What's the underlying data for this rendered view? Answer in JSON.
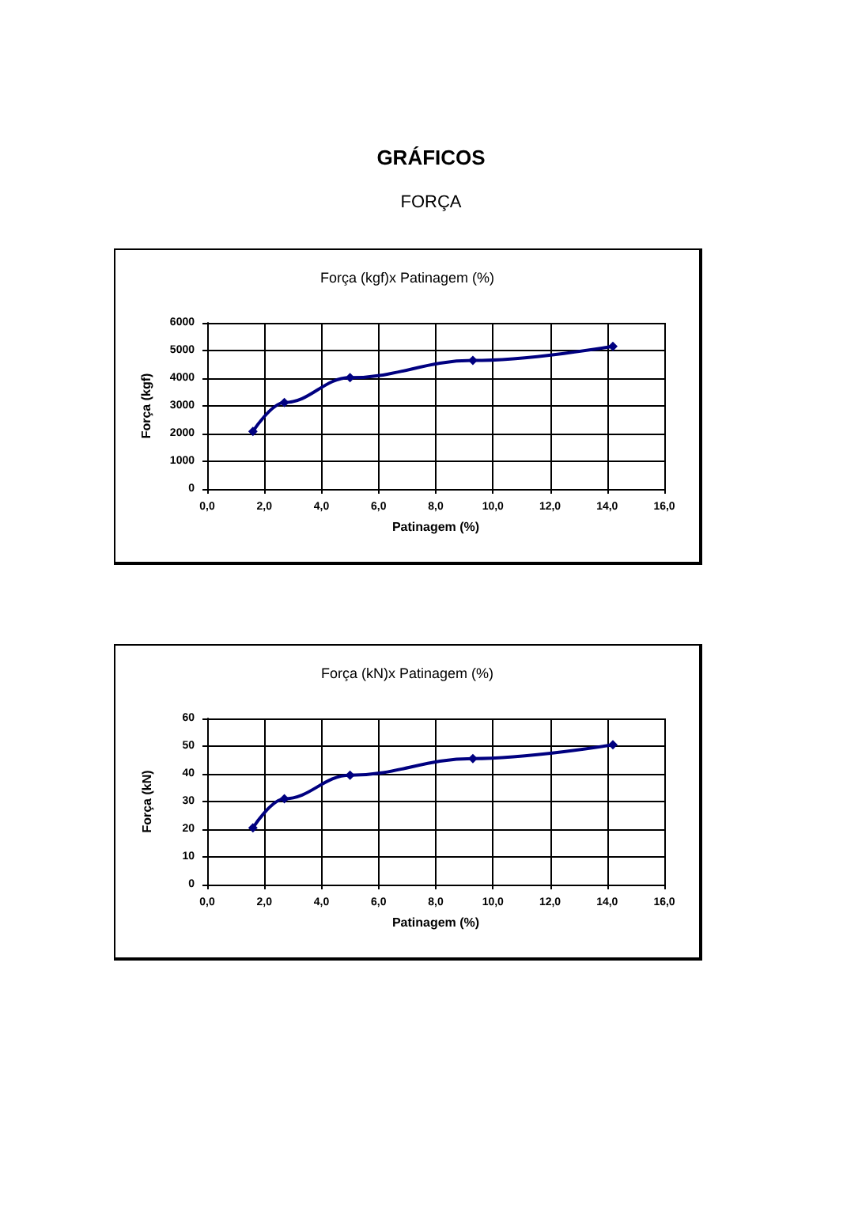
{
  "chart_data": [
    {
      "type": "line",
      "title": "Força (kgf)x Patinagem (%)",
      "xlabel": "Patinagem (%)",
      "ylabel": "Força (kgf)",
      "annotations": [
        "GRÁFICOS",
        "FORÇA"
      ],
      "x": [
        1.6,
        2.7,
        5.0,
        9.3,
        14.2
      ],
      "series": [
        {
          "color": "#000080",
          "values": [
            2080,
            3120,
            4020,
            4640,
            5150
          ]
        }
      ],
      "xlim": [
        0,
        16
      ],
      "xticks": [
        {
          "value": 0,
          "label": "0,0"
        },
        {
          "value": 2,
          "label": "2,0"
        },
        {
          "value": 4,
          "label": "4,0"
        },
        {
          "value": 6,
          "label": "6,0"
        },
        {
          "value": 8,
          "label": "8,0"
        },
        {
          "value": 10,
          "label": "10,0"
        },
        {
          "value": 12,
          "label": "12,0"
        },
        {
          "value": 14,
          "label": "14,0"
        },
        {
          "value": 16,
          "label": "16,0"
        }
      ],
      "ylim": [
        0,
        6000
      ],
      "yticks": [
        0,
        1000,
        2000,
        3000,
        4000,
        5000,
        6000
      ],
      "grid": true,
      "marker": "diamond",
      "line_style": "solid"
    },
    {
      "type": "line",
      "title": "Força (kN)x Patinagem (%)",
      "xlabel": "Patinagem (%)",
      "ylabel": "Força (kN)",
      "x": [
        1.6,
        2.7,
        5.0,
        9.3,
        14.2
      ],
      "series": [
        {
          "color": "#000080",
          "values": [
            20.5,
            31,
            39.5,
            45.5,
            50.5
          ]
        }
      ],
      "xlim": [
        0,
        16
      ],
      "xticks": [
        {
          "value": 0,
          "label": "0,0"
        },
        {
          "value": 2,
          "label": "2,0"
        },
        {
          "value": 4,
          "label": "4,0"
        },
        {
          "value": 6,
          "label": "6,0"
        },
        {
          "value": 8,
          "label": "8,0"
        },
        {
          "value": 10,
          "label": "10,0"
        },
        {
          "value": 12,
          "label": "12,0"
        },
        {
          "value": 14,
          "label": "14,0"
        },
        {
          "value": 16,
          "label": "16,0"
        }
      ],
      "ylim": [
        0,
        60
      ],
      "yticks": [
        0,
        10,
        20,
        30,
        40,
        50,
        60
      ],
      "grid": true,
      "marker": "diamond",
      "line_style": "solid"
    }
  ]
}
